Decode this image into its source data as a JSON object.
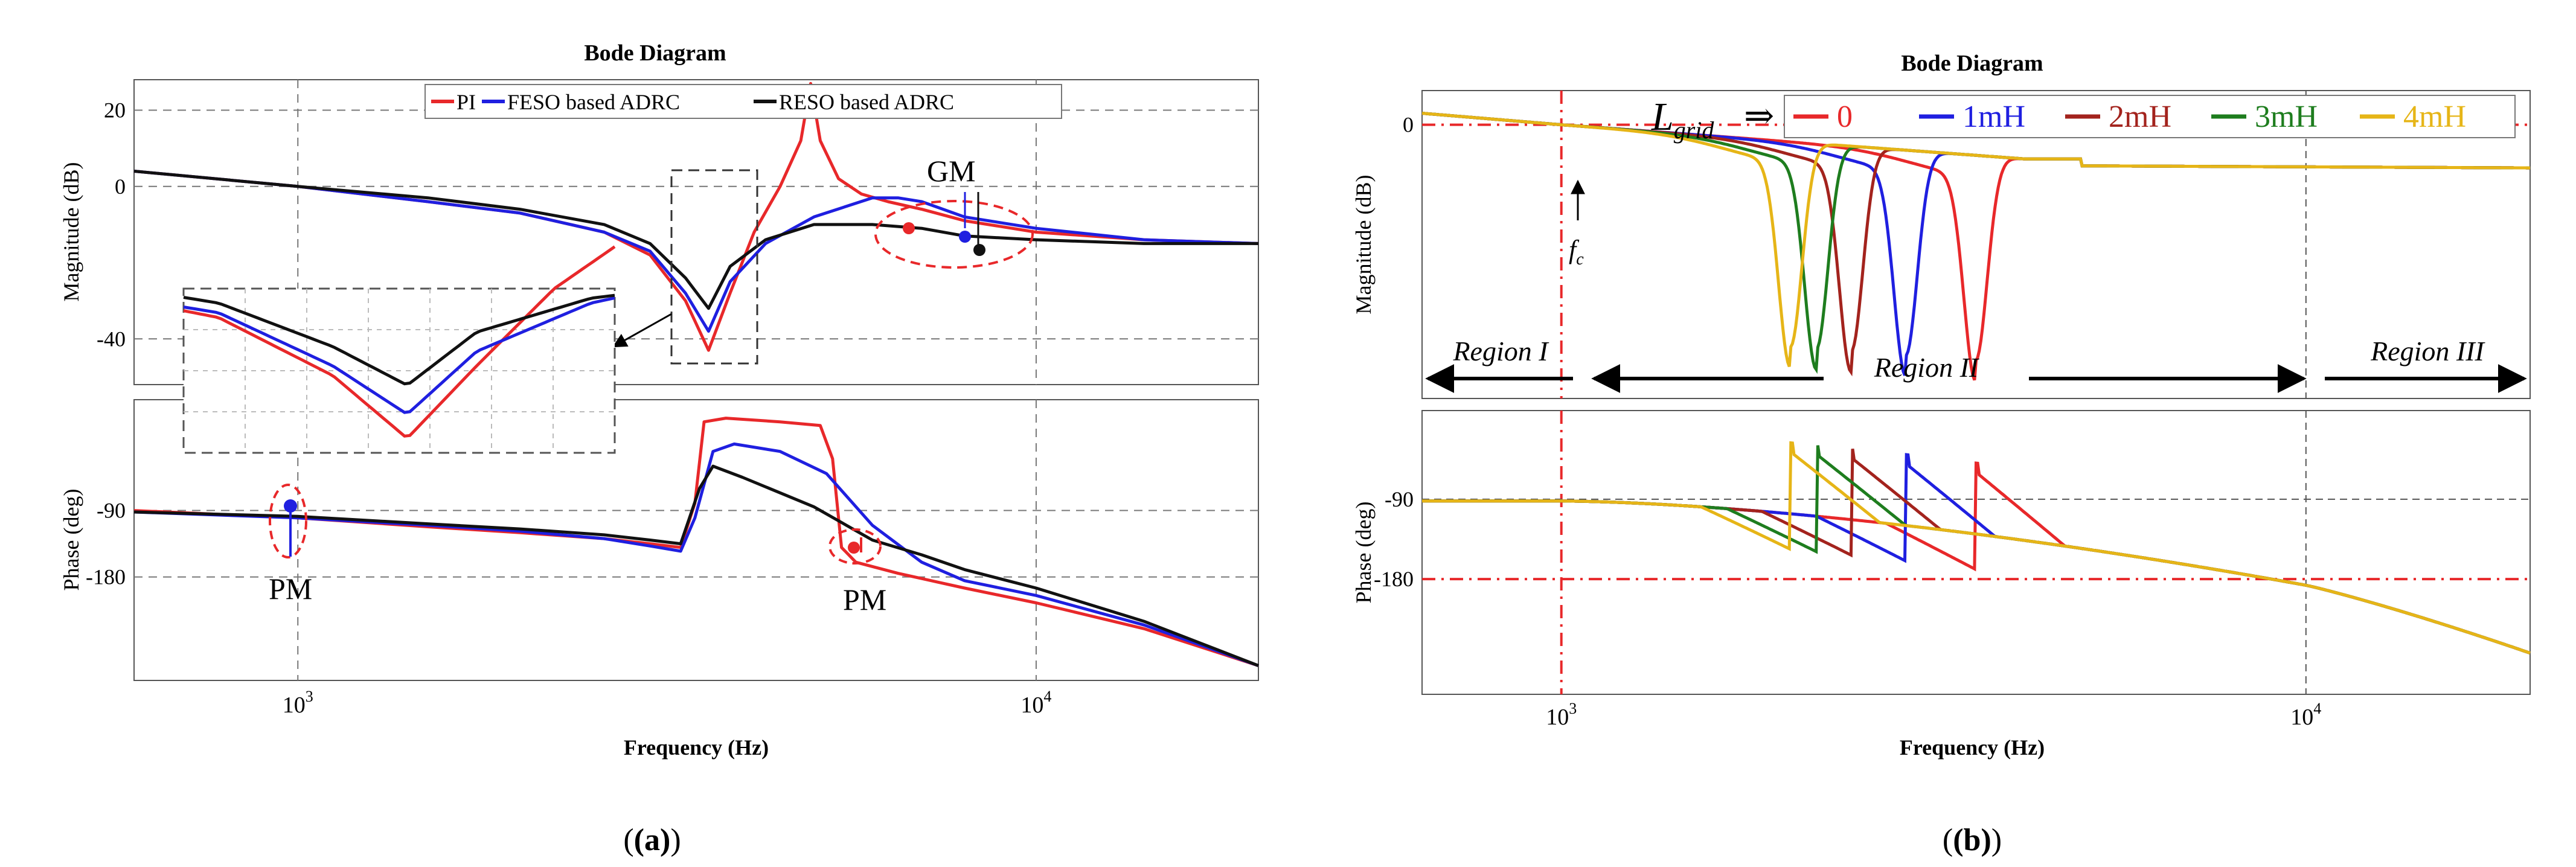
{
  "chart_data": [
    {
      "type": "line",
      "panel_label": "(a)",
      "title": "Bode Diagram",
      "xlabel": "Frequency  (Hz)",
      "x_scale": "log",
      "xlim": [
        600,
        20000
      ],
      "x_ticks": [
        {
          "value": 1000,
          "label": "10",
          "exp": "3"
        },
        {
          "value": 10000,
          "label": "10",
          "exp": "4"
        }
      ],
      "magnitude": {
        "ylabel": "Magnitude (dB)",
        "ylim": [
          -52,
          28
        ],
        "y_ticks": [
          {
            "value": 20,
            "label": "20"
          },
          {
            "value": 0,
            "label": "0"
          },
          {
            "value": -40,
            "label": "-40"
          }
        ],
        "series": [
          {
            "name": "PI",
            "color": "#e8282a",
            "points": [
              [
                600,
                4
              ],
              [
                1000,
                0
              ],
              [
                1500,
                -4
              ],
              [
                2000,
                -7
              ],
              [
                2600,
                -12
              ],
              [
                3000,
                -18
              ],
              [
                3350,
                -30
              ],
              [
                3600,
                -43
              ],
              [
                3850,
                -28
              ],
              [
                4150,
                -12
              ],
              [
                4500,
                0
              ],
              [
                4800,
                12
              ],
              [
                4950,
                27
              ],
              [
                5100,
                12
              ],
              [
                5400,
                2
              ],
              [
                5800,
                -2
              ],
              [
                6300,
                -4
              ],
              [
                7000,
                -6
              ],
              [
                8000,
                -9
              ],
              [
                10000,
                -12
              ],
              [
                14000,
                -14
              ],
              [
                20000,
                -15
              ]
            ]
          },
          {
            "name": "FESO based ADRC",
            "color": "#1f1fe0",
            "points": [
              [
                600,
                4
              ],
              [
                1000,
                0
              ],
              [
                1500,
                -4
              ],
              [
                2000,
                -7
              ],
              [
                2600,
                -12
              ],
              [
                3000,
                -17
              ],
              [
                3350,
                -28
              ],
              [
                3600,
                -38
              ],
              [
                3850,
                -25
              ],
              [
                4300,
                -15
              ],
              [
                5000,
                -8
              ],
              [
                6000,
                -3
              ],
              [
                6500,
                -3
              ],
              [
                7000,
                -4
              ],
              [
                8000,
                -8
              ],
              [
                10000,
                -11
              ],
              [
                14000,
                -14
              ],
              [
                20000,
                -15
              ]
            ]
          },
          {
            "name": "RESO based ADRC",
            "color": "#111111",
            "points": [
              [
                600,
                4
              ],
              [
                1000,
                0
              ],
              [
                1500,
                -3
              ],
              [
                2000,
                -6
              ],
              [
                2600,
                -10
              ],
              [
                3000,
                -15
              ],
              [
                3350,
                -24
              ],
              [
                3600,
                -32
              ],
              [
                3850,
                -21
              ],
              [
                4300,
                -14
              ],
              [
                5000,
                -10
              ],
              [
                6000,
                -10
              ],
              [
                7000,
                -11
              ],
              [
                8000,
                -13
              ],
              [
                10000,
                -14
              ],
              [
                14000,
                -15
              ],
              [
                20000,
                -15
              ]
            ]
          }
        ]
      },
      "phase": {
        "ylabel": "Phase (deg)",
        "ylim": [
          -320,
          60
        ],
        "y_ticks": [
          {
            "value": -90,
            "label": "-90"
          },
          {
            "value": -180,
            "label": "-180"
          }
        ],
        "series": [
          {
            "name": "PI",
            "color": "#e8282a",
            "points": [
              [
                600,
                -90
              ],
              [
                1000,
                -100
              ],
              [
                1500,
                -112
              ],
              [
                2000,
                -120
              ],
              [
                2600,
                -128
              ],
              [
                3000,
                -135
              ],
              [
                3300,
                -140
              ],
              [
                3450,
                -80
              ],
              [
                3550,
                30
              ],
              [
                3800,
                35
              ],
              [
                4500,
                30
              ],
              [
                5100,
                25
              ],
              [
                5300,
                -20
              ],
              [
                5450,
                -140
              ],
              [
                5700,
                -160
              ],
              [
                6500,
                -175
              ],
              [
                8000,
                -195
              ],
              [
                10000,
                -215
              ],
              [
                14000,
                -250
              ],
              [
                20000,
                -300
              ]
            ]
          },
          {
            "name": "FESO based ADRC",
            "color": "#1f1fe0",
            "points": [
              [
                600,
                -92
              ],
              [
                1000,
                -100
              ],
              [
                1500,
                -110
              ],
              [
                2000,
                -118
              ],
              [
                2600,
                -128
              ],
              [
                3000,
                -138
              ],
              [
                3300,
                -145
              ],
              [
                3450,
                -100
              ],
              [
                3650,
                -10
              ],
              [
                3900,
                0
              ],
              [
                4500,
                -10
              ],
              [
                5200,
                -40
              ],
              [
                6000,
                -110
              ],
              [
                7000,
                -160
              ],
              [
                8000,
                -185
              ],
              [
                10000,
                -205
              ],
              [
                14000,
                -245
              ],
              [
                20000,
                -300
              ]
            ]
          },
          {
            "name": "RESO based ADRC",
            "color": "#111111",
            "points": [
              [
                600,
                -92
              ],
              [
                1000,
                -98
              ],
              [
                1500,
                -108
              ],
              [
                2000,
                -115
              ],
              [
                2600,
                -123
              ],
              [
                3000,
                -130
              ],
              [
                3300,
                -135
              ],
              [
                3500,
                -60
              ],
              [
                3650,
                -30
              ],
              [
                4000,
                -45
              ],
              [
                5000,
                -85
              ],
              [
                6000,
                -130
              ],
              [
                7000,
                -150
              ],
              [
                8000,
                -170
              ],
              [
                10000,
                -195
              ],
              [
                14000,
                -240
              ],
              [
                20000,
                -300
              ]
            ]
          }
        ]
      },
      "annotations": [
        "GM",
        "PM",
        "PM"
      ]
    },
    {
      "type": "line",
      "panel_label": "(b)",
      "title": "Bode Diagram",
      "xlabel": "Frequency  (Hz)",
      "x_scale": "log",
      "xlim": [
        650,
        20000
      ],
      "x_ticks": [
        {
          "value": 1000,
          "label": "10",
          "exp": "3"
        },
        {
          "value": 10000,
          "label": "10",
          "exp": "4"
        }
      ],
      "legend_prefix": "L",
      "legend_prefix_sub": "grid",
      "legend_arrow": "⇒",
      "magnitude": {
        "ylabel": "Magnitude (dB)",
        "ylim": [
          -80,
          10
        ],
        "y_ticks": [
          {
            "value": 0,
            "label": "0"
          }
        ],
        "series": [
          {
            "name": "0",
            "color": "#e8282a",
            "dip": 3600
          },
          {
            "name": "1mH",
            "color": "#1f1fe0",
            "dip": 2900
          },
          {
            "name": "2mH",
            "color": "#a3231d",
            "dip": 2450
          },
          {
            "name": "3mH",
            "color": "#1e7d1e",
            "dip": 2200
          },
          {
            "name": "4mH",
            "color": "#e6b517",
            "dip": 2030
          }
        ]
      },
      "phase": {
        "ylabel": "Phase (deg)",
        "ylim": [
          -310,
          10
        ],
        "y_ticks": [
          {
            "value": -90,
            "label": "-90"
          },
          {
            "value": -180,
            "label": "-180"
          }
        ]
      },
      "annotations": {
        "fc_main": "f",
        "fc_sub": "c",
        "regions": [
          "Region I",
          "Region II",
          "Region III"
        ]
      }
    }
  ]
}
